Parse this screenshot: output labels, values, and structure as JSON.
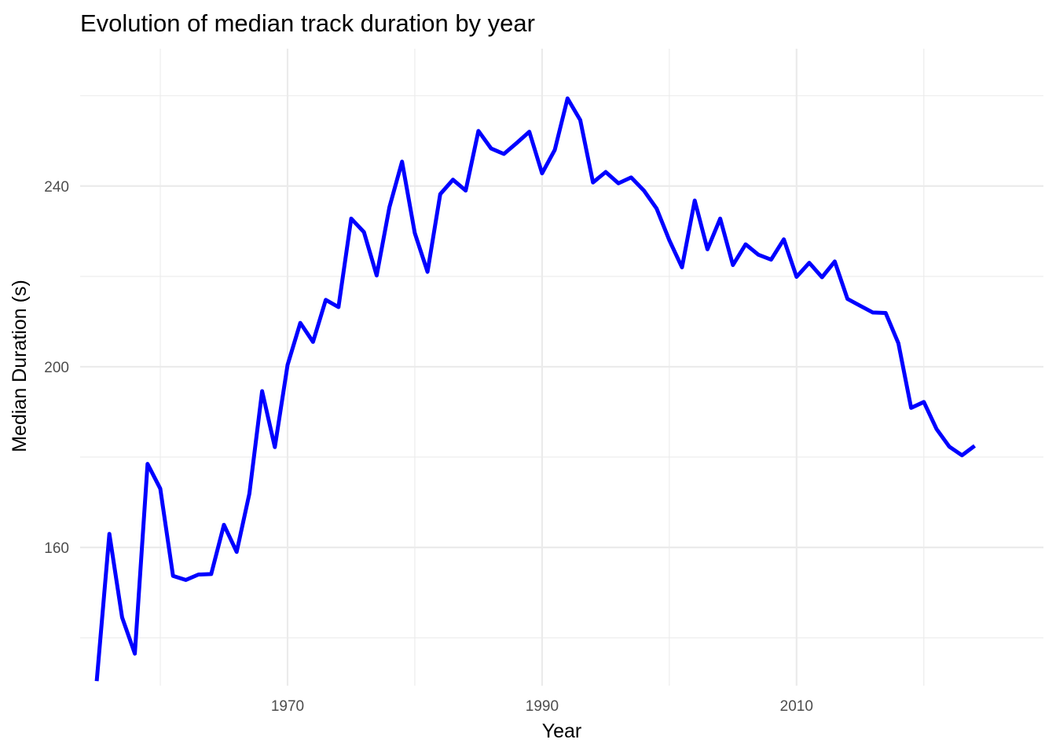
{
  "chart_data": {
    "type": "line",
    "title": "Evolution of median track duration by year",
    "xlabel": "Year",
    "ylabel": "Median Duration (s)",
    "x_ticks": [
      1970,
      1990,
      2010
    ],
    "x_minor_ticks": [
      1960,
      1980,
      2000,
      2020
    ],
    "y_ticks": [
      160,
      200,
      240
    ],
    "y_minor_ticks": [
      140,
      180,
      220,
      260
    ],
    "xlim": [
      1953.7,
      2029.4
    ],
    "ylim": [
      129.4,
      270.4
    ],
    "grid": true,
    "legend": "none",
    "color": "#0000ff",
    "x": [
      1955,
      1956,
      1957,
      1958,
      1959,
      1960,
      1961,
      1962,
      1963,
      1964,
      1965,
      1966,
      1967,
      1968,
      1969,
      1970,
      1971,
      1972,
      1973,
      1974,
      1975,
      1976,
      1977,
      1978,
      1979,
      1980,
      1981,
      1982,
      1983,
      1984,
      1985,
      1986,
      1987,
      1988,
      1989,
      1990,
      1991,
      1992,
      1993,
      1994,
      1995,
      1996,
      1997,
      1998,
      1999,
      2000,
      2001,
      2002,
      2003,
      2004,
      2005,
      2006,
      2007,
      2008,
      2009,
      2010,
      2011,
      2012,
      2013,
      2014,
      2015,
      2016,
      2017,
      2018,
      2019,
      2020,
      2021,
      2022,
      2023,
      2024
    ],
    "y": [
      130.4,
      163.0,
      144.5,
      136.5,
      178.5,
      173.0,
      153.7,
      152.8,
      154.0,
      154.1,
      165.0,
      159.0,
      171.9,
      194.6,
      182.2,
      200.4,
      209.7,
      205.5,
      214.8,
      213.2,
      232.8,
      229.8,
      220.2,
      235.3,
      245.4,
      229.6,
      221.0,
      238.2,
      241.4,
      239.0,
      252.2,
      248.3,
      247.1,
      249.5,
      252.0,
      242.8,
      248.0,
      259.4,
      254.6,
      240.8,
      243.1,
      240.6,
      241.9,
      239.0,
      235.0,
      228.0,
      222.0,
      236.8,
      226.0,
      232.8,
      222.5,
      227.1,
      224.8,
      223.7,
      228.2,
      219.9,
      223.0,
      219.8,
      223.3,
      215.0,
      213.5,
      212.0,
      211.9,
      205.2,
      190.9,
      192.2,
      186.2,
      182.3,
      180.4,
      182.5
    ]
  }
}
